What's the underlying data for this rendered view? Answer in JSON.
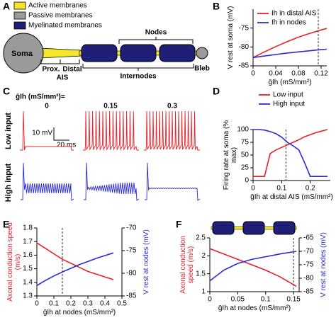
{
  "diagram": {
    "panel": "A",
    "legend": [
      {
        "label": "Active membranes",
        "color": "#f5e62a"
      },
      {
        "label": "Passive membranes",
        "color": "#9a9a9a"
      },
      {
        "label": "Myelinated membranes",
        "color": "#1f1f78"
      }
    ],
    "soma": "Soma",
    "prox": "Prox.",
    "distal": "Distal",
    "ais": "AIS",
    "nodes": "Nodes",
    "internodes": "Internodes",
    "bleb": "Bleb"
  },
  "traces": {
    "panel": "C",
    "header": "ḡIh (mS/mm²)=",
    "columns": [
      "0",
      "0.15",
      "0.3"
    ],
    "rows": [
      "Low input",
      "High input"
    ],
    "scale_v": "10 mV",
    "scale_t": "20 ms"
  },
  "chart_data": [
    {
      "type": "line",
      "panel": "B",
      "xlabel": "ḡIh (mS/mm²)",
      "ylabel": "V rest at soma (mV)",
      "x": [
        0,
        0.02,
        0.04,
        0.06,
        0.08,
        0.1,
        0.12,
        0.13
      ],
      "series": [
        {
          "name": "Ih in distal AIS",
          "color": "#e8202a",
          "values": [
            -82.8,
            -81.3,
            -79.9,
            -78.6,
            -77.4,
            -76.4,
            -75.5,
            -75.1
          ]
        },
        {
          "name": "Ih in nodes",
          "color": "#2a2ad6",
          "values": [
            -82.8,
            -82.4,
            -82,
            -81.6,
            -81.3,
            -81,
            -80.7,
            -80.6
          ]
        }
      ],
      "xlim": [
        0,
        0.13
      ],
      "ylim": [
        -85,
        -70
      ],
      "xticks": [
        0,
        0.04,
        0.08,
        0.12
      ],
      "yticks": [
        -85,
        -80,
        -75
      ],
      "vline": 0.115,
      "legend": "upper left"
    },
    {
      "type": "line",
      "panel": "D",
      "xlabel": "ḡIh at distal AIS (mS/mm²)",
      "ylabel": "Firing rate at soma (% max)",
      "x": [
        0,
        0.02,
        0.04,
        0.06,
        0.08,
        0.1,
        0.12,
        0.14,
        0.16,
        0.18,
        0.2,
        0.22,
        0.26
      ],
      "series": [
        {
          "name": "Low input",
          "color": "#e8202a",
          "values": [
            8,
            8,
            8,
            53,
            60,
            65,
            70,
            75,
            80,
            86,
            90,
            94,
            100
          ]
        },
        {
          "name": "High input",
          "color": "#2a2ad6",
          "values": [
            100,
            100,
            99,
            96,
            92,
            85,
            75,
            68,
            60,
            35,
            8,
            8,
            8
          ]
        }
      ],
      "xlim": [
        0,
        0.27
      ],
      "ylim": [
        0,
        100
      ],
      "xticks": [
        0,
        0.1,
        0.2
      ],
      "yticks": [
        0,
        25,
        50,
        75,
        100
      ],
      "vline": 0.115,
      "legend": "above"
    },
    {
      "type": "line",
      "panel": "E",
      "xlabel": "ḡIh at nodes (mS/mm²)",
      "ylabel": "Axonal conduction speed (m/s)",
      "y2label": "V rest at nodes (mV)",
      "x": [
        0,
        0.05,
        0.1,
        0.15,
        0.2,
        0.25,
        0.3,
        0.35,
        0.4,
        0.45
      ],
      "series": [
        {
          "color": "#e8202a",
          "values": [
            1.69,
            1.65,
            1.61,
            1.57,
            1.54,
            1.51,
            1.48,
            1.46,
            1.44,
            1.42
          ]
        },
        {
          "color": "#2a2ad6",
          "axis": "y2",
          "values": [
            -82.7,
            -81.6,
            -80.6,
            -79.7,
            -78.9,
            -78.1,
            -77.4,
            -76.7,
            -76.1,
            -75.5
          ]
        }
      ],
      "xlim": [
        0,
        0.5
      ],
      "ylim": [
        1.3,
        1.8
      ],
      "y2lim": [
        -85,
        -70
      ],
      "xticks": [
        0,
        0.1,
        0.2,
        0.3,
        0.4,
        0.5
      ],
      "yticks": [
        1.3,
        1.4,
        1.5,
        1.6,
        1.7,
        1.8
      ],
      "y2ticks": [
        -85,
        -80,
        -75,
        -70
      ],
      "vline": 0.15
    },
    {
      "type": "line",
      "panel": "F",
      "xlabel": "ḡIh at nodes (mS/mm²)",
      "ylabel": "Axonal conduction speed (m/s)",
      "y2label": "V rest at nodes (mV)",
      "x": [
        0,
        0.025,
        0.05,
        0.075,
        0.1,
        0.125,
        0.155
      ],
      "series": [
        {
          "color": "#e8202a",
          "values": [
            2.2,
            2.05,
            1.9,
            1.75,
            1.6,
            1.42,
            1.15
          ]
        },
        {
          "color": "#2a2ad6",
          "axis": "y2",
          "values": [
            -81,
            -77,
            -74.5,
            -73,
            -72,
            -71,
            -70
          ]
        }
      ],
      "xlim": [
        0,
        0.16
      ],
      "ylim": [
        1,
        2.5
      ],
      "y2lim": [
        -85,
        -65
      ],
      "xticks": [
        0,
        0.05,
        0.1,
        0.15
      ],
      "yticks": [
        1,
        1.5,
        2,
        2.5
      ],
      "y2ticks": [
        -85,
        -80,
        -75,
        -70,
        -65
      ],
      "vline": 0.15
    }
  ]
}
